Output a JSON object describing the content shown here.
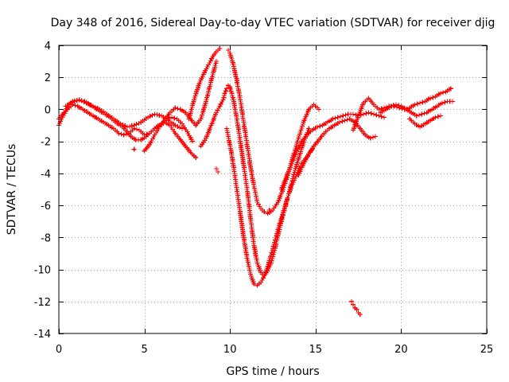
{
  "chart_data": {
    "type": "scatter",
    "title": "Day 348 of 2016, Sidereal Day-to-day VTEC variation (SDTVAR) for receiver djig",
    "xlabel": "GPS time / hours",
    "ylabel": "SDTVAR / TECUs",
    "xlim": [
      0,
      25
    ],
    "ylim": [
      -14,
      4
    ],
    "x_ticks": [
      0,
      5,
      10,
      15,
      20,
      25
    ],
    "x_tick_labels": [
      "0",
      "5",
      "10",
      "15",
      "20",
      "25"
    ],
    "y_ticks": [
      -14,
      -12,
      -10,
      -8,
      -6,
      -4,
      -2,
      0,
      2,
      4
    ],
    "y_tick_labels": [
      "-14",
      "-12",
      "-10",
      "-8",
      "-6",
      "-4",
      "-2",
      "0",
      "2",
      "4"
    ],
    "grid": true,
    "marker": "plus",
    "color": "#ff0000",
    "series": [
      {
        "x": [
          0.0,
          0.2,
          0.5,
          0.8,
          1.1,
          1.4,
          1.7,
          2.0,
          2.3,
          2.6,
          2.9,
          3.2,
          3.5,
          3.8,
          4.1,
          4.4,
          4.7,
          5.0,
          5.3,
          5.6,
          5.9,
          6.2,
          6.5,
          6.8,
          7.1,
          7.4,
          7.7,
          8.0
        ],
        "y": [
          -1.0,
          -0.5,
          0.0,
          0.3,
          0.2,
          0.0,
          -0.2,
          -0.4,
          -0.6,
          -0.8,
          -1.0,
          -1.2,
          -1.5,
          -1.6,
          -1.5,
          -1.2,
          -1.3,
          -1.6,
          -1.5,
          -1.2,
          -1.0,
          -0.8,
          -1.0,
          -1.5,
          -1.9,
          -2.3,
          -2.7,
          -3.0
        ]
      },
      {
        "x": [
          0.0,
          0.3,
          0.6,
          0.9,
          1.2,
          1.5,
          1.8,
          2.1,
          2.4,
          2.7,
          3.0,
          3.3,
          3.6,
          3.9,
          4.2,
          4.5,
          4.8,
          5.1,
          5.4,
          5.7,
          6.0,
          6.3,
          6.6,
          6.9,
          7.2,
          7.5,
          7.8
        ],
        "y": [
          -0.6,
          -0.2,
          0.3,
          0.5,
          0.6,
          0.5,
          0.3,
          0.1,
          -0.1,
          -0.3,
          -0.5,
          -0.8,
          -1.0,
          -1.3,
          -1.7,
          -1.9,
          -1.9,
          -1.7,
          -1.4,
          -1.1,
          -0.9,
          -0.6,
          -0.5,
          -0.6,
          -0.9,
          -1.4,
          -2.0
        ]
      },
      {
        "x": [
          0.4,
          0.8,
          1.2,
          1.6,
          2.0,
          2.4,
          2.8,
          3.2,
          3.6,
          4.0,
          4.4,
          4.8,
          5.2,
          5.6,
          6.0,
          6.4,
          6.8,
          7.2
        ],
        "y": [
          0.2,
          0.5,
          0.6,
          0.4,
          0.2,
          0.0,
          -0.3,
          -0.6,
          -0.9,
          -1.1,
          -1.0,
          -0.8,
          -0.5,
          -0.3,
          -0.4,
          -0.7,
          -1.0,
          -1.2
        ]
      },
      {
        "x": [
          5.0,
          5.3,
          5.6,
          5.9,
          6.2,
          6.5,
          6.8,
          7.1,
          7.4,
          7.7,
          8.0,
          8.3,
          8.6,
          8.9,
          9.2
        ],
        "y": [
          -2.6,
          -2.2,
          -1.6,
          -1.1,
          -0.6,
          -0.2,
          0.1,
          0.0,
          -0.2,
          -0.6,
          -1.0,
          -0.6,
          0.5,
          1.8,
          3.0
        ]
      },
      {
        "x": [
          7.6,
          7.9,
          8.2,
          8.5,
          8.8,
          9.0,
          9.2,
          9.4
        ],
        "y": [
          -0.6,
          0.6,
          1.6,
          2.3,
          2.9,
          3.3,
          3.6,
          3.8
        ]
      },
      {
        "x": [
          8.3,
          8.6,
          8.9,
          9.2,
          9.4,
          9.6,
          9.7,
          9.8,
          9.9,
          10.0
        ],
        "y": [
          -2.3,
          -1.8,
          -1.0,
          -0.2,
          0.2,
          0.6,
          1.0,
          1.3,
          1.5,
          1.3
        ]
      },
      {
        "x": [
          9.9,
          10.0,
          10.2,
          10.4,
          10.6,
          10.8,
          11.0,
          11.2,
          11.4,
          11.6,
          11.8,
          12.0,
          12.2,
          12.5,
          12.8,
          13.1,
          13.4,
          13.7,
          14.0,
          14.3,
          14.6,
          14.9,
          15.2
        ],
        "y": [
          3.7,
          3.5,
          2.8,
          1.8,
          0.6,
          -0.8,
          -2.2,
          -3.6,
          -4.8,
          -5.8,
          -6.2,
          -6.4,
          -6.5,
          -6.3,
          -5.8,
          -5.0,
          -4.0,
          -2.9,
          -1.8,
          -0.8,
          0.0,
          0.3,
          0.0
        ]
      },
      {
        "x": [
          10.0,
          10.2,
          10.4,
          10.6,
          10.8,
          11.0,
          11.2,
          11.4,
          11.6,
          11.8,
          12.0,
          12.2,
          12.4,
          12.6,
          12.8,
          13.0,
          13.2,
          13.4,
          13.6,
          13.8,
          14.0,
          14.2,
          14.4,
          14.6
        ],
        "y": [
          1.4,
          0.6,
          -0.6,
          -2.0,
          -3.5,
          -5.0,
          -6.8,
          -8.5,
          -9.6,
          -10.2,
          -10.4,
          -10.1,
          -9.6,
          -8.8,
          -7.9,
          -7.0,
          -6.2,
          -5.4,
          -4.6,
          -3.8,
          -3.1,
          -2.4,
          -1.8,
          -1.2
        ]
      },
      {
        "x": [
          9.8,
          10.0,
          10.2,
          10.4,
          10.6,
          10.8,
          11.0,
          11.2,
          11.4,
          11.6,
          11.8,
          12.0,
          12.2,
          12.4,
          12.6,
          12.8,
          13.0,
          13.2,
          13.4,
          13.6,
          13.8,
          14.0,
          14.2,
          14.4,
          14.6,
          14.8
        ],
        "y": [
          -1.2,
          -2.2,
          -3.5,
          -5.0,
          -6.5,
          -8.0,
          -9.3,
          -10.3,
          -10.9,
          -11.0,
          -10.8,
          -10.4,
          -9.8,
          -9.1,
          -8.3,
          -7.5,
          -6.8,
          -6.1,
          -5.4,
          -4.8,
          -4.3,
          -3.8,
          -3.4,
          -3.1,
          -2.8,
          -2.5
        ]
      },
      {
        "x": [
          13.0,
          13.3,
          13.6,
          13.9,
          14.2,
          14.5,
          14.8,
          15.1,
          15.4,
          15.7,
          16.0,
          16.3,
          16.6,
          16.9,
          17.2,
          17.5,
          17.8,
          18.1,
          18.4,
          18.7,
          19.0
        ],
        "y": [
          -5.0,
          -4.2,
          -3.4,
          -2.6,
          -2.0,
          -1.6,
          -1.3,
          -1.1,
          -1.0,
          -0.8,
          -0.6,
          -0.5,
          -0.4,
          -0.3,
          -0.3,
          -0.4,
          -0.3,
          -0.2,
          -0.3,
          -0.4,
          -0.5
        ]
      },
      {
        "x": [
          14.0,
          14.3,
          14.6,
          14.9,
          15.2,
          15.5,
          15.8,
          16.1,
          16.4,
          16.7,
          17.0,
          17.3,
          17.6,
          17.9,
          18.2,
          18.5
        ],
        "y": [
          -4.1,
          -3.4,
          -2.8,
          -2.3,
          -1.9,
          -1.5,
          -1.2,
          -1.0,
          -0.8,
          -0.7,
          -0.6,
          -0.8,
          -1.2,
          -1.6,
          -1.8,
          -1.7
        ]
      },
      {
        "x": [
          17.2,
          17.5,
          17.8,
          18.1,
          18.4,
          18.7,
          19.0,
          19.3,
          19.6,
          19.9,
          20.2,
          20.5,
          20.8,
          21.1,
          21.4,
          21.7,
          22.0,
          22.3,
          22.6,
          22.9
        ],
        "y": [
          -1.3,
          -0.4,
          0.4,
          0.7,
          0.3,
          0.0,
          0.1,
          0.2,
          0.2,
          0.1,
          0.0,
          0.1,
          0.3,
          0.4,
          0.5,
          0.7,
          0.8,
          1.0,
          1.1,
          1.3
        ]
      },
      {
        "x": [
          18.8,
          19.1,
          19.4,
          19.7,
          20.0,
          20.3,
          20.6,
          20.9,
          21.2,
          21.5,
          21.8,
          22.1,
          22.4,
          22.7,
          23.0
        ],
        "y": [
          -0.2,
          0.0,
          0.2,
          0.3,
          0.2,
          0.0,
          -0.2,
          -0.4,
          -0.3,
          -0.2,
          0.0,
          0.2,
          0.4,
          0.5,
          0.5
        ]
      },
      {
        "x": [
          20.5,
          20.8,
          21.1,
          21.4,
          21.7,
          22.0,
          22.3
        ],
        "y": [
          -0.6,
          -0.9,
          -1.1,
          -0.9,
          -0.7,
          -0.5,
          -0.4
        ]
      },
      {
        "x": [
          17.1,
          17.2,
          17.3,
          17.4,
          17.5,
          17.6
        ],
        "y": [
          -12.0,
          -12.2,
          -12.4,
          -12.5,
          -12.7,
          -12.8
        ]
      },
      {
        "x": [
          4.4,
          9.2,
          9.3,
          12.3
        ],
        "y": [
          -2.5,
          -3.7,
          -3.9,
          -6.3
        ]
      }
    ]
  }
}
